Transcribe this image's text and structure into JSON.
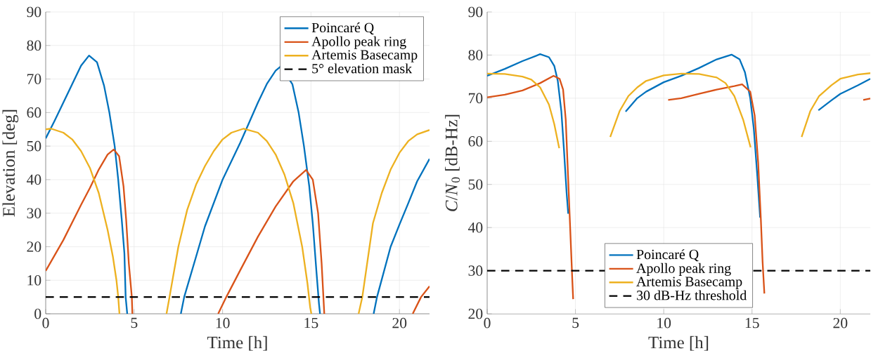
{
  "chart_data": [
    {
      "type": "line",
      "xlabel": "Time [h]",
      "ylabel": "Elevation [deg]",
      "xlim": [
        0,
        21.7
      ],
      "ylim": [
        0,
        90
      ],
      "xticks": [
        0,
        5,
        10,
        15,
        20
      ],
      "yticks": [
        0,
        10,
        20,
        30,
        40,
        50,
        60,
        70,
        80,
        90
      ],
      "grid": true,
      "legend": "top right",
      "series": [
        {
          "name": "Poincaré Q",
          "color": "#0072bd",
          "x": [
            0,
            0.5,
            1,
            1.5,
            2,
            2.45,
            2.9,
            3.3,
            3.6,
            3.9,
            4.1,
            4.3,
            4.45,
            4.52,
            4.61,
            6,
            7.64,
            7.83,
            8.5,
            9,
            10,
            11,
            11.5,
            12,
            12.5,
            13,
            13.3,
            13.95,
            14.3,
            14.6,
            14.9,
            15.1,
            15.3,
            15.45,
            15.51,
            17,
            18.54,
            18.73,
            19.5,
            20,
            20.5,
            21,
            21.7
          ],
          "values": [
            52.3,
            57.5,
            63,
            68.5,
            74,
            77,
            75,
            68,
            60,
            50,
            40,
            28,
            18,
            5,
            0,
            null,
            0,
            5,
            17,
            26,
            40,
            51,
            57,
            63,
            68.5,
            72.5,
            73.8,
            68.4,
            60,
            50,
            38,
            27,
            13,
            3,
            0,
            null,
            0,
            5,
            20,
            26.6,
            33,
            39.5,
            46.2
          ]
        },
        {
          "name": "Apollo peak ring",
          "color": "#d95319",
          "x": [
            0,
            1,
            2,
            2.5,
            3,
            3.5,
            3.85,
            4.15,
            4.4,
            4.55,
            4.7,
            4.87,
            4.9,
            7,
            9.75,
            10.21,
            11,
            12,
            13,
            14,
            14.72,
            15.1,
            15.4,
            15.6,
            15.7,
            15.75,
            18,
            20.75,
            21.22,
            21.7
          ],
          "values": [
            12.8,
            22,
            32.5,
            37.5,
            43,
            47.5,
            49,
            47,
            38,
            28,
            15,
            5,
            0,
            null,
            0,
            5,
            13,
            23,
            32,
            39.5,
            42.9,
            40,
            30,
            15,
            5,
            0,
            null,
            0,
            5,
            8.2
          ]
        },
        {
          "name": "Artemis Basecamp",
          "color": "#edb120",
          "x": [
            0,
            0.3,
            1,
            1.5,
            2,
            2.5,
            3,
            3.5,
            3.8,
            4.0,
            4.1,
            4.17,
            5.5,
            6.83,
            7.0,
            7.5,
            8,
            8.5,
            9,
            9.5,
            10,
            10.5,
            11.19,
            12,
            12.5,
            13,
            13.5,
            14,
            14.5,
            14.8,
            14.95,
            15.02,
            16.5,
            17.69,
            17.9,
            18.5,
            19,
            19.5,
            20,
            20.5,
            21,
            21.7
          ],
          "values": [
            55,
            55.2,
            54,
            52,
            48.5,
            43.5,
            36,
            25,
            17,
            10,
            5,
            0,
            null,
            0,
            5,
            20,
            31,
            38.5,
            44,
            48.5,
            52,
            54,
            55.2,
            54,
            51.5,
            47.5,
            41.5,
            33,
            20,
            9,
            2,
            0,
            null,
            0,
            5,
            27,
            36,
            43,
            48,
            51.5,
            53.5,
            54.8
          ]
        }
      ],
      "ref_lines": [
        {
          "axis": "y",
          "value": 5,
          "label": "5° elevation mask",
          "color": "#000000",
          "line_style": "dashed"
        }
      ]
    },
    {
      "type": "line",
      "xlabel": "Time [h]",
      "ylabel": "*C*/*N*$_{0}$ [dB-Hz]",
      "xlim": [
        0,
        21.7
      ],
      "ylim": [
        20,
        90
      ],
      "xticks": [
        0,
        5,
        10,
        15,
        20
      ],
      "yticks": [
        20,
        30,
        40,
        50,
        60,
        70,
        80,
        90
      ],
      "grid": true,
      "legend": "bottom",
      "series": [
        {
          "name": "Poincaré Q",
          "color": "#0072bd",
          "x": [
            0,
            1,
            2,
            3,
            3.5,
            3.8,
            4.0,
            4.2,
            4.35,
            4.5,
            4.59,
            6,
            7.84,
            8.5,
            9,
            10,
            11,
            12,
            13,
            13.84,
            14.3,
            14.6,
            14.9,
            15.1,
            15.3,
            15.46,
            17,
            18.76,
            19.5,
            20,
            21,
            21.7
          ],
          "values": [
            75.2,
            76.8,
            78.6,
            80.2,
            79.5,
            77.5,
            74,
            67,
            58,
            48,
            43.2,
            null,
            66.9,
            70,
            71.5,
            73.7,
            75.2,
            77,
            79,
            80.1,
            79,
            76,
            70,
            63,
            52,
            42.3,
            null,
            67.2,
            69.5,
            71,
            73,
            74.5
          ]
        },
        {
          "name": "Apollo peak ring",
          "color": "#d95319",
          "x": [
            0,
            1,
            2,
            3,
            3.76,
            4.1,
            4.3,
            4.45,
            4.55,
            4.65,
            4.75,
            4.82,
            4.87,
            7,
            10.25,
            11,
            12,
            13,
            14,
            14.44,
            14.9,
            15.15,
            15.35,
            15.5,
            15.6,
            15.7,
            18,
            21.3,
            21.7
          ],
          "values": [
            70.2,
            70.8,
            71.8,
            73.5,
            75.2,
            74.5,
            72,
            65,
            55,
            45,
            35,
            28,
            23.4,
            null,
            69.6,
            70,
            71,
            72,
            72.8,
            73.2,
            71.5,
            66,
            55,
            42,
            32,
            24.7,
            null,
            69.6,
            69.9
          ]
        },
        {
          "name": "Artemis Basecamp",
          "color": "#edb120",
          "x": [
            0,
            1,
            2,
            2.5,
            3,
            3.5,
            3.8,
            4.08,
            5.5,
            6.97,
            7.5,
            8,
            8.5,
            9,
            10,
            11,
            12,
            13,
            13.5,
            14,
            14.5,
            14.92,
            16.5,
            17.81,
            18.3,
            18.8,
            19.5,
            20,
            21,
            21.7
          ],
          "values": [
            75.7,
            75.6,
            75,
            74.3,
            72.5,
            68.5,
            64,
            58.4,
            null,
            61,
            67,
            70.5,
            72.5,
            74,
            75.3,
            75.7,
            75.6,
            74.8,
            73.5,
            70.5,
            65,
            58.6,
            null,
            61,
            67,
            70.5,
            73,
            74.5,
            75.5,
            75.8
          ]
        }
      ],
      "ref_lines": [
        {
          "axis": "y",
          "value": 30,
          "label": "30 dB-Hz threshold",
          "color": "#000000",
          "line_style": "dashed"
        }
      ]
    }
  ]
}
